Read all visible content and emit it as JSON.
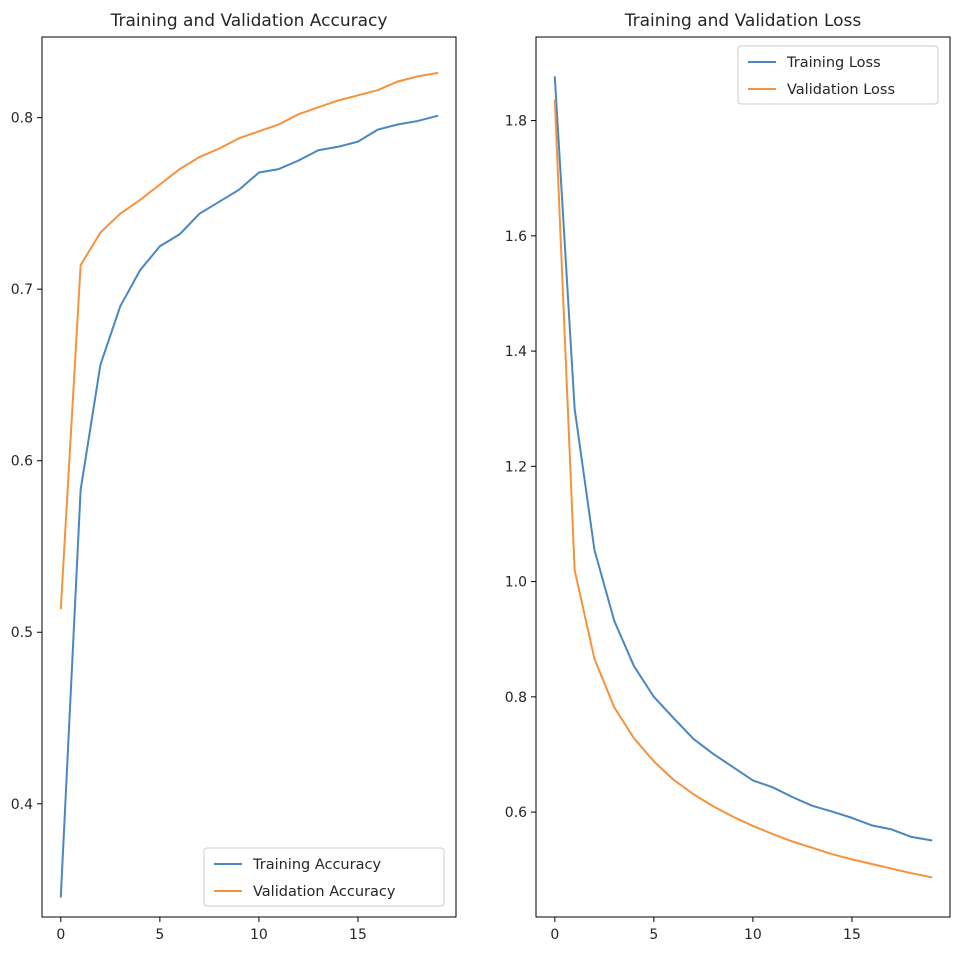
{
  "chart_data": [
    {
      "type": "line",
      "title": "Training and Validation Accuracy",
      "xlabel": "",
      "ylabel": "",
      "xlim": [
        -0.95,
        19.95
      ],
      "ylim": [
        0.334,
        0.847
      ],
      "xticks": [
        0,
        5,
        10,
        15
      ],
      "yticks": [
        0.4,
        0.5,
        0.6,
        0.7,
        0.8
      ],
      "legend_position": "lower-right",
      "grid": false,
      "x": [
        0,
        1,
        2,
        3,
        4,
        5,
        6,
        7,
        8,
        9,
        10,
        11,
        12,
        13,
        14,
        15,
        16,
        17,
        18,
        19
      ],
      "series": [
        {
          "name": "Training Accuracy",
          "color": "#4a86c0",
          "values": [
            0.346,
            0.583,
            0.656,
            0.69,
            0.711,
            0.725,
            0.732,
            0.744,
            0.751,
            0.758,
            0.768,
            0.77,
            0.775,
            0.781,
            0.783,
            0.786,
            0.793,
            0.796,
            0.798,
            0.801
          ]
        },
        {
          "name": "Validation Accuracy",
          "color": "#f5923e",
          "values": [
            0.514,
            0.714,
            0.733,
            0.744,
            0.752,
            0.761,
            0.77,
            0.777,
            0.782,
            0.788,
            0.792,
            0.796,
            0.802,
            0.806,
            0.81,
            0.813,
            0.816,
            0.821,
            0.824,
            0.826
          ]
        }
      ]
    },
    {
      "type": "line",
      "title": "Training and Validation Loss",
      "xlabel": "",
      "ylabel": "",
      "xlim": [
        -0.95,
        19.95
      ],
      "ylim": [
        0.418,
        1.945
      ],
      "xticks": [
        0,
        5,
        10,
        15
      ],
      "yticks": [
        0.6,
        0.8,
        1.0,
        1.2,
        1.4,
        1.6,
        1.8
      ],
      "legend_position": "upper-right",
      "grid": false,
      "x": [
        0,
        1,
        2,
        3,
        4,
        5,
        6,
        7,
        8,
        9,
        10,
        11,
        12,
        13,
        14,
        15,
        16,
        17,
        18,
        19
      ],
      "series": [
        {
          "name": "Training Loss",
          "color": "#4a86c0",
          "values": [
            1.875,
            1.3,
            1.055,
            0.932,
            0.853,
            0.8,
            0.763,
            0.727,
            0.701,
            0.678,
            0.655,
            0.643,
            0.626,
            0.611,
            0.601,
            0.59,
            0.577,
            0.57,
            0.557,
            0.551
          ]
        },
        {
          "name": "Validation Loss",
          "color": "#f5923e",
          "values": [
            1.835,
            1.02,
            0.866,
            0.782,
            0.728,
            0.688,
            0.656,
            0.631,
            0.61,
            0.592,
            0.576,
            0.562,
            0.549,
            0.538,
            0.527,
            0.518,
            0.51,
            0.502,
            0.494,
            0.487
          ]
        }
      ]
    }
  ]
}
